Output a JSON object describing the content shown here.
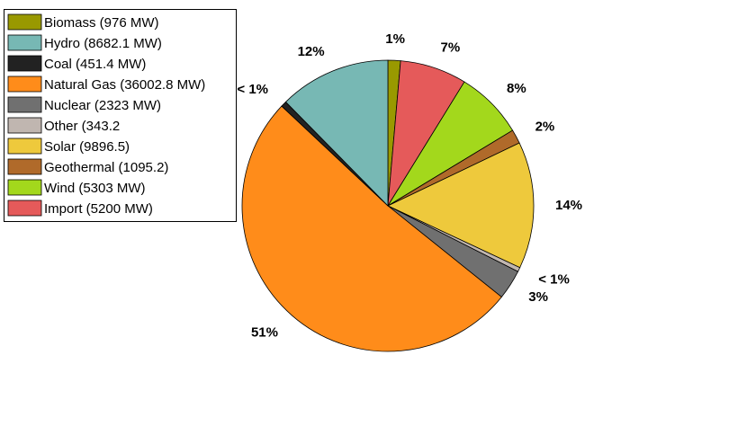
{
  "chart_data": {
    "type": "pie",
    "start_angle_deg": 270,
    "direction": "clockwise",
    "legend_position": "top-left",
    "slices": [
      {
        "legend": "Biomass (976 MW)",
        "value": 976,
        "pct_label": "1%",
        "color": "#999900"
      },
      {
        "legend": "Import (5200 MW)",
        "value": 5200,
        "pct_label": "7%",
        "color": "#e55a5a"
      },
      {
        "legend": "Wind (5303 MW)",
        "value": 5303,
        "pct_label": "8%",
        "color": "#a3d81c"
      },
      {
        "legend": "Geothermal (1095.2)",
        "value": 1095.2,
        "pct_label": "2%",
        "color": "#b06a2a"
      },
      {
        "legend": "Solar (9896.5)",
        "value": 9896.5,
        "pct_label": "14%",
        "color": "#eec93c"
      },
      {
        "legend": "Other (343.2",
        "value": 343.2,
        "pct_label": "< 1%",
        "color": "#c0b6b0"
      },
      {
        "legend": "Nuclear (2323 MW)",
        "value": 2323,
        "pct_label": "3%",
        "color": "#707070"
      },
      {
        "legend": "Natural Gas (36002.8 MW)",
        "value": 36002.8,
        "pct_label": "51%",
        "color": "#ff8c1a"
      },
      {
        "legend": "Coal (451.4 MW)",
        "value": 451.4,
        "pct_label": "< 1%",
        "color": "#222222"
      },
      {
        "legend": "Hydro (8682.1 MW)",
        "value": 8682.1,
        "pct_label": "12%",
        "color": "#77b8b4"
      }
    ],
    "legend_order": [
      "Biomass (976 MW)",
      "Hydro (8682.1 MW)",
      "Coal (451.4 MW)",
      "Natural Gas (36002.8 MW)",
      "Nuclear (2323 MW)",
      "Other (343.2",
      "Solar (9896.5)",
      "Geothermal (1095.2)",
      "Wind (5303 MW)",
      "Import (5200 MW)"
    ]
  }
}
